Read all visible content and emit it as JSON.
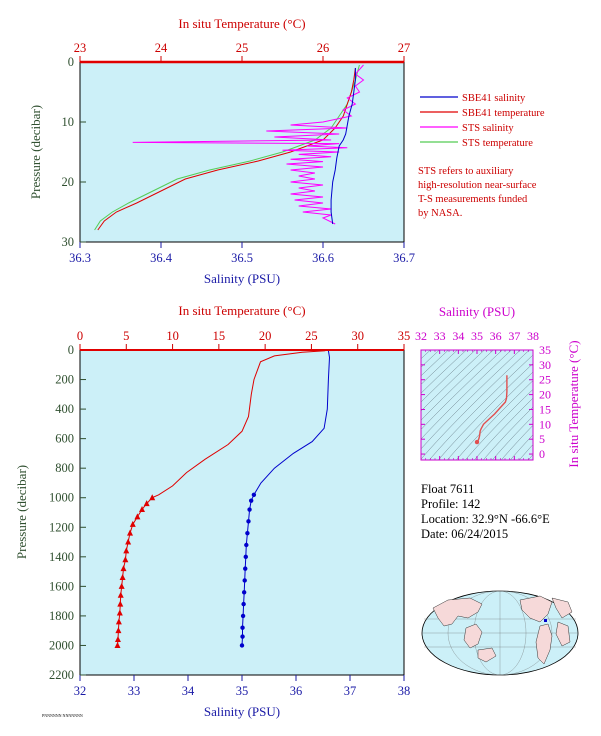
{
  "colors": {
    "plot_bg": "#ccf0f8",
    "temperature": "#e00000",
    "salinity": "#0000cc",
    "sts_salinity": "#ff00ff",
    "sts_temperature": "#55cc55",
    "pressure_axis": "#2f4f2f",
    "ts_axis": "#cc00cc"
  },
  "legend": {
    "items": [
      "SBE41 salinity",
      "SBE41 temperature",
      "STS salinity",
      "STS temperature"
    ],
    "note": [
      "STS refers to auxiliary",
      "high-resolution near-surface",
      "T-S measurements funded",
      "by NASA."
    ]
  },
  "float_info": {
    "float": "Float  7611",
    "profile": "Profile:  142",
    "location": "Location:  32.9°N  -66.6°E",
    "date": "Date:  06/24/2015"
  },
  "footer_note": "PNNNNNN NNNNNNN",
  "chart_data": [
    {
      "type": "line",
      "title": "",
      "temp_axis_label": "In situ Temperature (°C)",
      "temp_ticks": [
        23,
        24,
        25,
        26,
        27
      ],
      "temp_range": [
        23,
        27
      ],
      "sal_axis_label": "Salinity (PSU)",
      "sal_ticks": [
        36.3,
        36.4,
        36.5,
        36.6,
        36.7
      ],
      "sal_range": [
        36.3,
        36.7
      ],
      "ylabel": "Pressure (decibar)",
      "pressure_ticks": [
        0,
        10,
        20,
        30
      ],
      "pressure_range": [
        0,
        30
      ],
      "series": [
        {
          "name": "SBE41 salinity",
          "axis": "salinity",
          "points": [
            [
              36.64,
              1
            ],
            [
              36.64,
              3
            ],
            [
              36.638,
              5
            ],
            [
              36.636,
              7
            ],
            [
              36.632,
              9
            ],
            [
              36.63,
              10.5
            ],
            [
              36.628,
              12
            ],
            [
              36.625,
              13
            ],
            [
              36.62,
              14
            ],
            [
              36.617,
              16
            ],
            [
              36.615,
              18
            ],
            [
              36.612,
              20
            ],
            [
              36.61,
              23
            ],
            [
              36.61,
              25
            ],
            [
              36.612,
              27
            ]
          ]
        },
        {
          "name": "SBE41 temperature",
          "axis": "temperature",
          "points": [
            [
              26.4,
              1
            ],
            [
              26.38,
              3
            ],
            [
              26.35,
              5
            ],
            [
              26.3,
              7
            ],
            [
              26.25,
              9
            ],
            [
              26.15,
              11
            ],
            [
              26.0,
              13
            ],
            [
              25.6,
              15
            ],
            [
              25.2,
              16.5
            ],
            [
              24.7,
              18
            ],
            [
              24.3,
              19.5
            ],
            [
              24.0,
              21.5
            ],
            [
              23.7,
              23.5
            ],
            [
              23.45,
              25
            ],
            [
              23.3,
              26.5
            ],
            [
              23.22,
              28
            ]
          ]
        },
        {
          "name": "STS salinity",
          "axis": "salinity",
          "points": [
            [
              36.65,
              0.5
            ],
            [
              36.64,
              2
            ],
            [
              36.65,
              3
            ],
            [
              36.64,
              4
            ],
            [
              36.645,
              5
            ],
            [
              36.63,
              6
            ],
            [
              36.64,
              7
            ],
            [
              36.625,
              8
            ],
            [
              36.635,
              9
            ],
            [
              36.6,
              10
            ],
            [
              36.56,
              10.5
            ],
            [
              36.63,
              11
            ],
            [
              36.53,
              11.5
            ],
            [
              36.62,
              12
            ],
            [
              36.54,
              12.5
            ],
            [
              36.61,
              13
            ],
            [
              36.365,
              13.4
            ],
            [
              36.62,
              13.6
            ],
            [
              36.58,
              14
            ],
            [
              36.63,
              14.3
            ],
            [
              36.55,
              14.7
            ],
            [
              36.62,
              15
            ],
            [
              36.57,
              15.4
            ],
            [
              36.61,
              15.8
            ],
            [
              36.56,
              16.2
            ],
            [
              36.6,
              16.6
            ],
            [
              36.555,
              17
            ],
            [
              36.6,
              17.5
            ],
            [
              36.56,
              18
            ],
            [
              36.59,
              18.5
            ],
            [
              36.57,
              19
            ],
            [
              36.59,
              19.5
            ],
            [
              36.56,
              20
            ],
            [
              36.6,
              20.5
            ],
            [
              36.57,
              21
            ],
            [
              36.59,
              21.5
            ],
            [
              36.56,
              22
            ],
            [
              36.6,
              22.5
            ],
            [
              36.565,
              23
            ],
            [
              36.6,
              23.5
            ],
            [
              36.57,
              24
            ],
            [
              36.61,
              24.5
            ],
            [
              36.575,
              25
            ],
            [
              36.61,
              25.5
            ],
            [
              36.6,
              26
            ],
            [
              36.615,
              27
            ]
          ]
        },
        {
          "name": "STS temperature",
          "axis": "temperature",
          "points": [
            [
              26.45,
              0.5
            ],
            [
              26.42,
              2
            ],
            [
              26.4,
              3
            ],
            [
              26.35,
              5
            ],
            [
              26.3,
              7
            ],
            [
              26.2,
              9
            ],
            [
              26.1,
              11
            ],
            [
              25.9,
              13
            ],
            [
              25.5,
              15
            ],
            [
              25.1,
              16.5
            ],
            [
              24.6,
              18
            ],
            [
              24.2,
              19.5
            ],
            [
              23.9,
              21.5
            ],
            [
              23.6,
              23.5
            ],
            [
              23.4,
              25
            ],
            [
              23.25,
              26.5
            ],
            [
              23.18,
              28
            ]
          ]
        }
      ]
    },
    {
      "type": "line",
      "title": "",
      "temp_axis_label": "In situ Temperature (°C)",
      "temp_ticks": [
        0,
        5,
        10,
        15,
        20,
        25,
        30,
        35
      ],
      "temp_range": [
        0,
        35
      ],
      "sal_axis_label": "Salinity (PSU)",
      "sal_ticks": [
        32,
        33,
        34,
        35,
        36,
        37,
        38
      ],
      "sal_range": [
        32,
        38
      ],
      "ylabel": "Pressure (decibar)",
      "pressure_ticks": [
        0,
        200,
        400,
        600,
        800,
        1000,
        1200,
        1400,
        1600,
        1800,
        2000,
        2200
      ],
      "pressure_range": [
        0,
        2200
      ],
      "series": [
        {
          "name": "SBE41 temperature",
          "axis": "temperature",
          "points": [
            [
              26.5,
              5
            ],
            [
              24,
              15
            ],
            [
              21,
              40
            ],
            [
              19.5,
              80
            ],
            [
              18.8,
              200
            ],
            [
              18.5,
              300
            ],
            [
              18.2,
              450
            ],
            [
              17.5,
              550
            ],
            [
              16.0,
              640
            ],
            [
              13.5,
              740
            ],
            [
              11.5,
              830
            ],
            [
              10.0,
              920
            ],
            [
              8.5,
              980
            ],
            [
              7.8,
              1000
            ],
            [
              7.2,
              1040
            ],
            [
              6.7,
              1080
            ],
            [
              6.2,
              1130
            ],
            [
              5.7,
              1180
            ],
            [
              5.4,
              1240
            ],
            [
              5.2,
              1300
            ],
            [
              5.0,
              1360
            ],
            [
              4.9,
              1420
            ],
            [
              4.7,
              1480
            ],
            [
              4.6,
              1540
            ],
            [
              4.5,
              1600
            ],
            [
              4.4,
              1660
            ],
            [
              4.35,
              1720
            ],
            [
              4.3,
              1780
            ],
            [
              4.2,
              1840
            ],
            [
              4.15,
              1900
            ],
            [
              4.1,
              1960
            ],
            [
              4.05,
              2000
            ]
          ]
        },
        {
          "name": "SBE41 salinity",
          "axis": "salinity",
          "points": [
            [
              36.6,
              5
            ],
            [
              36.62,
              50
            ],
            [
              36.6,
              200
            ],
            [
              36.58,
              400
            ],
            [
              36.52,
              530
            ],
            [
              36.3,
              620
            ],
            [
              35.95,
              700
            ],
            [
              35.6,
              800
            ],
            [
              35.35,
              900
            ],
            [
              35.22,
              980
            ],
            [
              35.17,
              1020
            ],
            [
              35.14,
              1080
            ],
            [
              35.12,
              1160
            ],
            [
              35.1,
              1240
            ],
            [
              35.08,
              1320
            ],
            [
              35.07,
              1400
            ],
            [
              35.06,
              1480
            ],
            [
              35.05,
              1560
            ],
            [
              35.04,
              1640
            ],
            [
              35.03,
              1720
            ],
            [
              35.02,
              1800
            ],
            [
              35.01,
              1880
            ],
            [
              35.01,
              1940
            ],
            [
              35.0,
              2000
            ]
          ]
        }
      ]
    },
    {
      "type": "line",
      "title": "",
      "sal_axis_label": "Salinity (PSU)",
      "sal_ticks": [
        32,
        33,
        34,
        35,
        36,
        37,
        38
      ],
      "sal_range": [
        32,
        38
      ],
      "temp_axis_label": "In situ Temperature (°C)",
      "temp_ticks": [
        0,
        5,
        10,
        15,
        20,
        25,
        30,
        35
      ],
      "temp_range": [
        -2,
        35
      ],
      "series": [
        {
          "name": "T-S curve",
          "points": [
            [
              36.6,
              26.5
            ],
            [
              36.6,
              21
            ],
            [
              36.58,
              18.8
            ],
            [
              36.52,
              17.5
            ],
            [
              36.3,
              16.0
            ],
            [
              35.95,
              13.5
            ],
            [
              35.6,
              11.5
            ],
            [
              35.35,
              10.0
            ],
            [
              35.22,
              8.5
            ],
            [
              35.17,
              7.8
            ],
            [
              35.14,
              6.2
            ],
            [
              35.1,
              5.2
            ],
            [
              35.06,
              4.6
            ],
            [
              35.03,
              4.3
            ],
            [
              35.0,
              4.05
            ]
          ]
        }
      ]
    }
  ]
}
